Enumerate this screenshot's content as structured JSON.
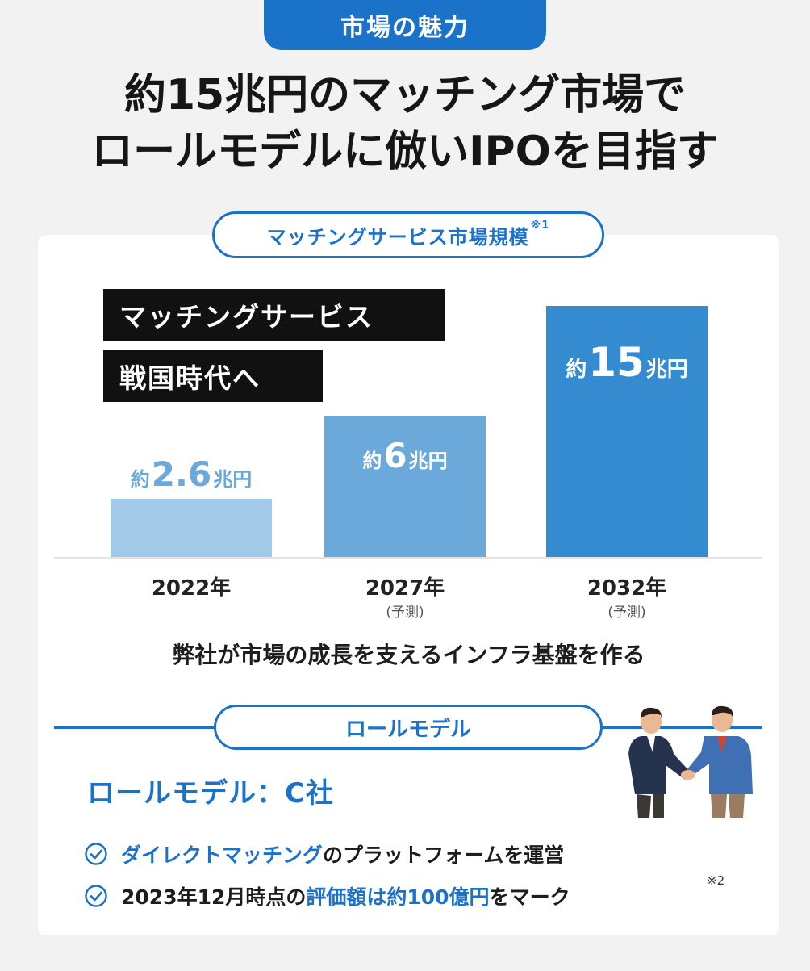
{
  "tag_top": "市場の魅力",
  "headline": {
    "line1": "約15兆円のマッチング市場で",
    "line2": "ロールモデルに倣いIPOを目指す"
  },
  "market_pill": {
    "label": "マッチングサービス市場規模",
    "note": "※1"
  },
  "callout": {
    "line1": "マッチングサービス",
    "line2": "戦国時代へ"
  },
  "chart_data": {
    "type": "bar",
    "categories": [
      "2022年",
      "2027年",
      "2032年"
    ],
    "category_notes": [
      "",
      "(予測)",
      "(予測)"
    ],
    "values": [
      2.6,
      6,
      15
    ],
    "value_labels": [
      {
        "prefix": "約",
        "number": "2.6",
        "unit": "兆円"
      },
      {
        "prefix": "約",
        "number": "6",
        "unit": "兆円"
      },
      {
        "prefix": "約",
        "number": "15",
        "unit": "兆円"
      }
    ],
    "colors": [
      "#a2c9e8",
      "#6aa9da",
      "#348bcf"
    ]
  },
  "infra_text": "弊社が市場の成長を支えるインフラ基盤を作る",
  "role_pill": {
    "label": "ロールモデル"
  },
  "role_title": "ロールモデル：C社",
  "points": [
    {
      "highlight": "ダイレクトマッチング",
      "rest": "のプラットフォームを運営"
    },
    {
      "pre": "2023年12月時点の",
      "highlight": "評価額は約100億円",
      "post": "をマーク",
      "note": "※2"
    }
  ],
  "icons": {
    "check": "check-circle-icon",
    "illustration": "handshake-illustration"
  },
  "colors": {
    "accent": "#1b73c9",
    "background": "#f2f2f3"
  }
}
